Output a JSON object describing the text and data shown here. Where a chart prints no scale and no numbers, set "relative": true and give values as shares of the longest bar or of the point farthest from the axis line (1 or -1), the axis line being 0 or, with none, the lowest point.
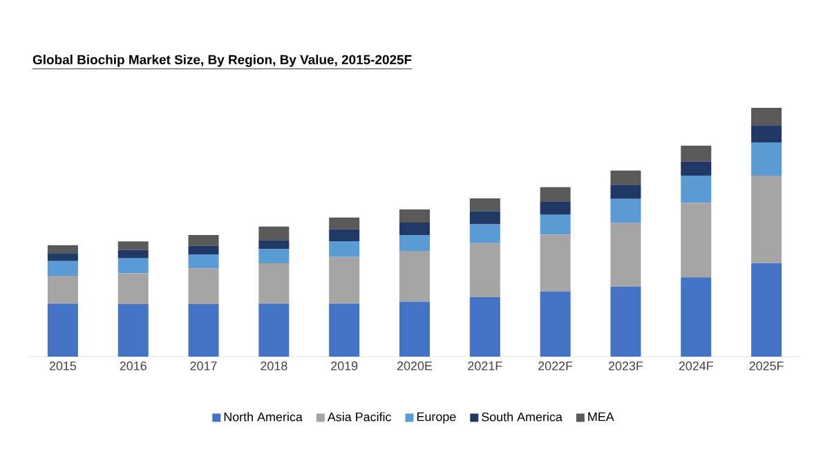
{
  "chart_data": {
    "type": "bar",
    "title": "Global Biochip Market Size, By Region, By Value, 2015-2025F",
    "categories": [
      "2015",
      "2016",
      "2017",
      "2018",
      "2019",
      "2020E",
      "2021F",
      "2022F",
      "2023F",
      "2024F",
      "2025F"
    ],
    "stacked": true,
    "relative": true,
    "legend": "bottom",
    "series": [
      {
        "name": "North America",
        "color": "#4472c4",
        "values": [
          0.213,
          0.211,
          0.211,
          0.213,
          0.213,
          0.221,
          0.239,
          0.262,
          0.282,
          0.319,
          0.376
        ]
      },
      {
        "name": "Asia Pacific",
        "color": "#a5a5a5",
        "values": [
          0.112,
          0.124,
          0.143,
          0.162,
          0.188,
          0.204,
          0.217,
          0.228,
          0.257,
          0.299,
          0.352
        ]
      },
      {
        "name": "Europe",
        "color": "#5b9bd5",
        "values": [
          0.059,
          0.06,
          0.057,
          0.057,
          0.063,
          0.064,
          0.076,
          0.08,
          0.095,
          0.11,
          0.133
        ]
      },
      {
        "name": "South America",
        "color": "#1f3864",
        "values": [
          0.032,
          0.034,
          0.034,
          0.036,
          0.048,
          0.05,
          0.053,
          0.054,
          0.057,
          0.057,
          0.067
        ]
      },
      {
        "name": "MEA",
        "color": "#595959",
        "values": [
          0.032,
          0.034,
          0.044,
          0.055,
          0.047,
          0.053,
          0.051,
          0.057,
          0.057,
          0.063,
          0.072
        ]
      }
    ]
  }
}
